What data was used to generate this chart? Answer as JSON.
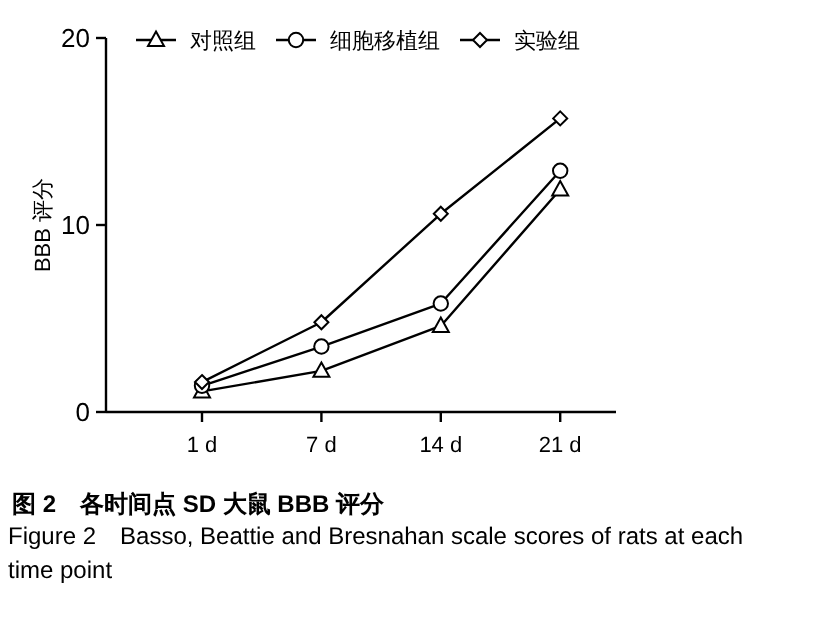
{
  "chart_data": {
    "type": "line",
    "title": "图 2　各时间点 SD 大鼠 BBB 评分",
    "subtitle": "Figure 2　Basso, Beattie and Bresnahan scale scores of rats at each time point",
    "ylabel": "BBB 评分",
    "categories": [
      "1 d",
      "7 d",
      "14 d",
      "21 d"
    ],
    "series": [
      {
        "name": "对照组",
        "color": "#000000",
        "marker": "triangle",
        "values": [
          1.1,
          2.2,
          4.6,
          11.9
        ]
      },
      {
        "name": "细胞移植组",
        "color": "#000000",
        "marker": "circle",
        "values": [
          1.4,
          3.5,
          5.8,
          12.9
        ]
      },
      {
        "name": "实验组",
        "color": "#000000",
        "marker": "diamond",
        "values": [
          1.6,
          4.8,
          10.6,
          15.7
        ]
      }
    ],
    "ylim": [
      0,
      20
    ],
    "yticks": [
      0,
      10,
      20
    ],
    "grid": false,
    "legend": "top",
    "line_style": "solid"
  }
}
